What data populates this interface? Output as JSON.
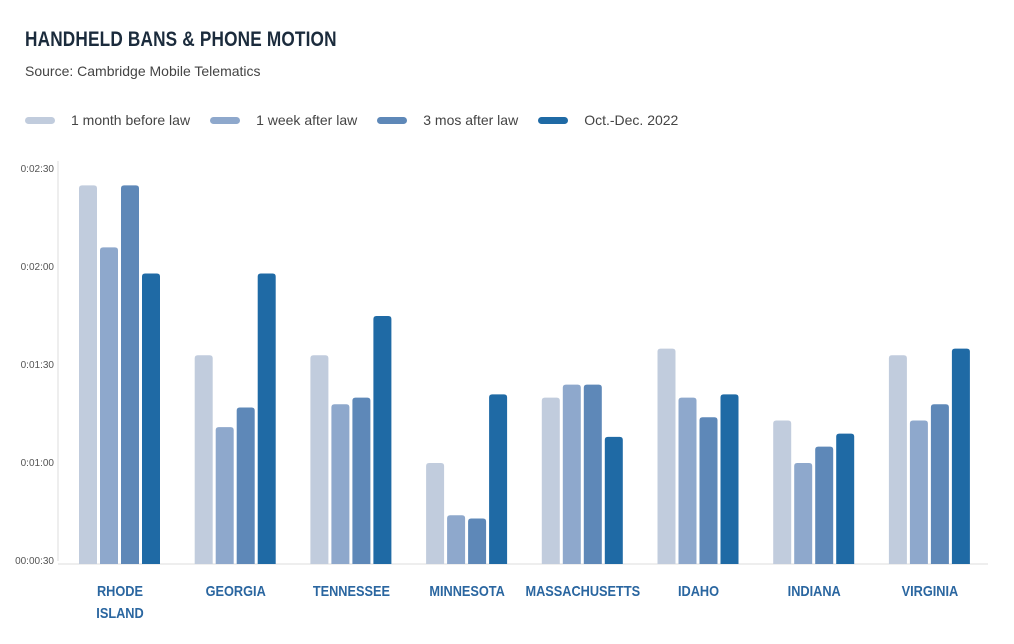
{
  "chart_data": {
    "type": "bar",
    "title": "HANDHELD BANS & PHONE MOTION",
    "subtitle": "Source: Cambridge Mobile Telematics",
    "categories": [
      "RHODE ISLAND",
      "GEORGIA",
      "TENNESSEE",
      "MINNESOTA",
      "MASSACHUSETTS",
      "IDAHO",
      "INDIANA",
      "VIRGINIA"
    ],
    "series": [
      {
        "name": "1 month before law",
        "color": "#c1ccdd",
        "values": [
          145,
          93,
          93,
          60,
          80,
          95,
          73,
          93
        ]
      },
      {
        "name": "1 week after law",
        "color": "#8ea8cc",
        "values": [
          126,
          71,
          78,
          44,
          84,
          80,
          60,
          73
        ]
      },
      {
        "name": "3 mos after law",
        "color": "#5e88b8",
        "values": [
          145,
          77,
          80,
          43,
          84,
          74,
          65,
          78
        ]
      },
      {
        "name": "Oct.-Dec. 2022",
        "color": "#1f6aa5",
        "values": [
          118,
          118,
          105,
          81,
          68,
          81,
          69,
          95
        ]
      }
    ],
    "value_unit": "seconds",
    "ylim_seconds": [
      30,
      150
    ],
    "yticks": [
      {
        "value": 150,
        "label": "0:02:30"
      },
      {
        "value": 120,
        "label": "0:02:00"
      },
      {
        "value": 90,
        "label": "0:01:30"
      },
      {
        "value": 60,
        "label": "0:01:00"
      },
      {
        "value": 30,
        "label": "00:00:30"
      }
    ],
    "grid": false,
    "legend_position": "top-left"
  }
}
